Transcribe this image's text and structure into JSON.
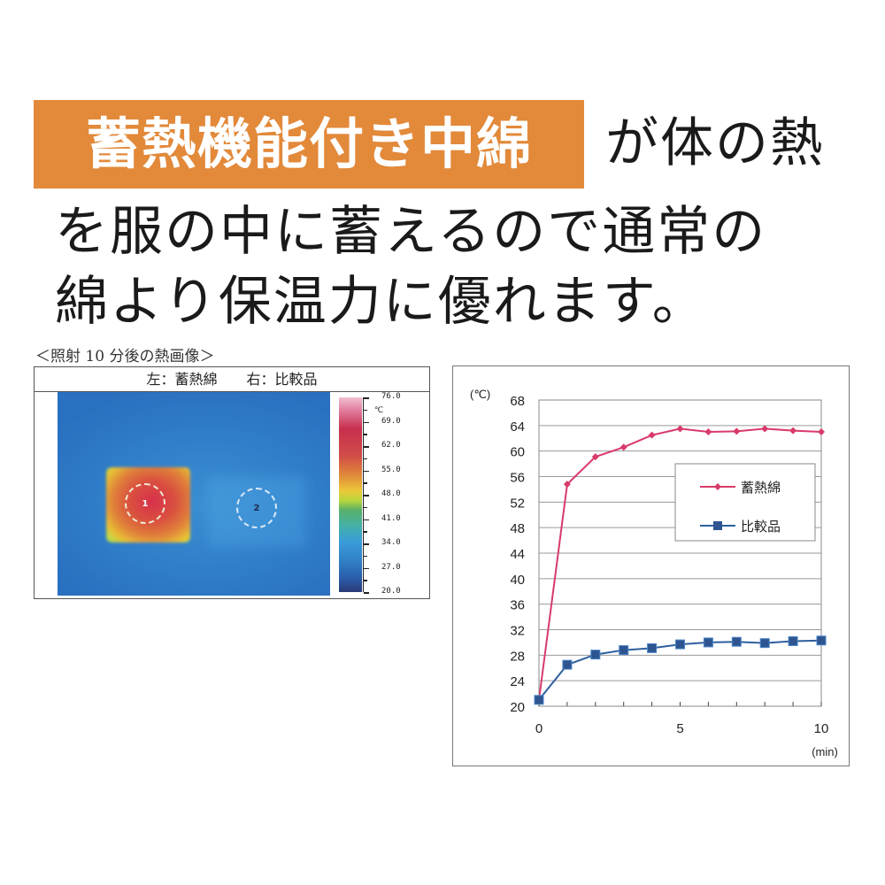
{
  "banner": {
    "text": "蓄熱機能付き中綿",
    "color": "#e2893a"
  },
  "headline": {
    "line1": "が体の熱",
    "line2": "を服の中に蓄えるので通常の",
    "line3": "綿より保温力に優れます。"
  },
  "thermal_image": {
    "caption": "＜照射 10 分後の熱画像＞",
    "header_left": "左：蓄熱綿",
    "header_right": "右：比較品",
    "marker_1": "1",
    "marker_2": "2",
    "colorbar_unit": "℃",
    "colorbar_labels": [
      "76.0",
      "69.0",
      "62.0",
      "55.0",
      "48.0",
      "41.0",
      "34.0",
      "27.0",
      "20.0"
    ]
  },
  "chart_data": {
    "type": "line",
    "title": "",
    "xlabel": "(min)",
    "ylabel": "(℃)",
    "x": [
      0,
      1,
      2,
      3,
      4,
      5,
      6,
      7,
      8,
      9,
      10
    ],
    "x_ticks": [
      "0",
      "5",
      "10"
    ],
    "y_ticks": [
      "20",
      "24",
      "28",
      "32",
      "36",
      "40",
      "44",
      "48",
      "52",
      "56",
      "60",
      "64",
      "68"
    ],
    "ylim": [
      20,
      68
    ],
    "xlim": [
      0,
      10
    ],
    "grid": "horizontal",
    "legend_position": "upper-right-inside",
    "series": [
      {
        "name": "蓄熱綿",
        "color": "#d83a6a",
        "marker": "diamond",
        "values": [
          21.0,
          54.8,
          59.1,
          60.6,
          62.5,
          63.5,
          63.0,
          63.1,
          63.5,
          63.2,
          63.0
        ]
      },
      {
        "name": "比較品",
        "color": "#2e5f9e",
        "marker": "square",
        "values": [
          21.0,
          26.5,
          28.1,
          28.8,
          29.1,
          29.7,
          30.0,
          30.1,
          29.9,
          30.2,
          30.3
        ]
      }
    ]
  }
}
